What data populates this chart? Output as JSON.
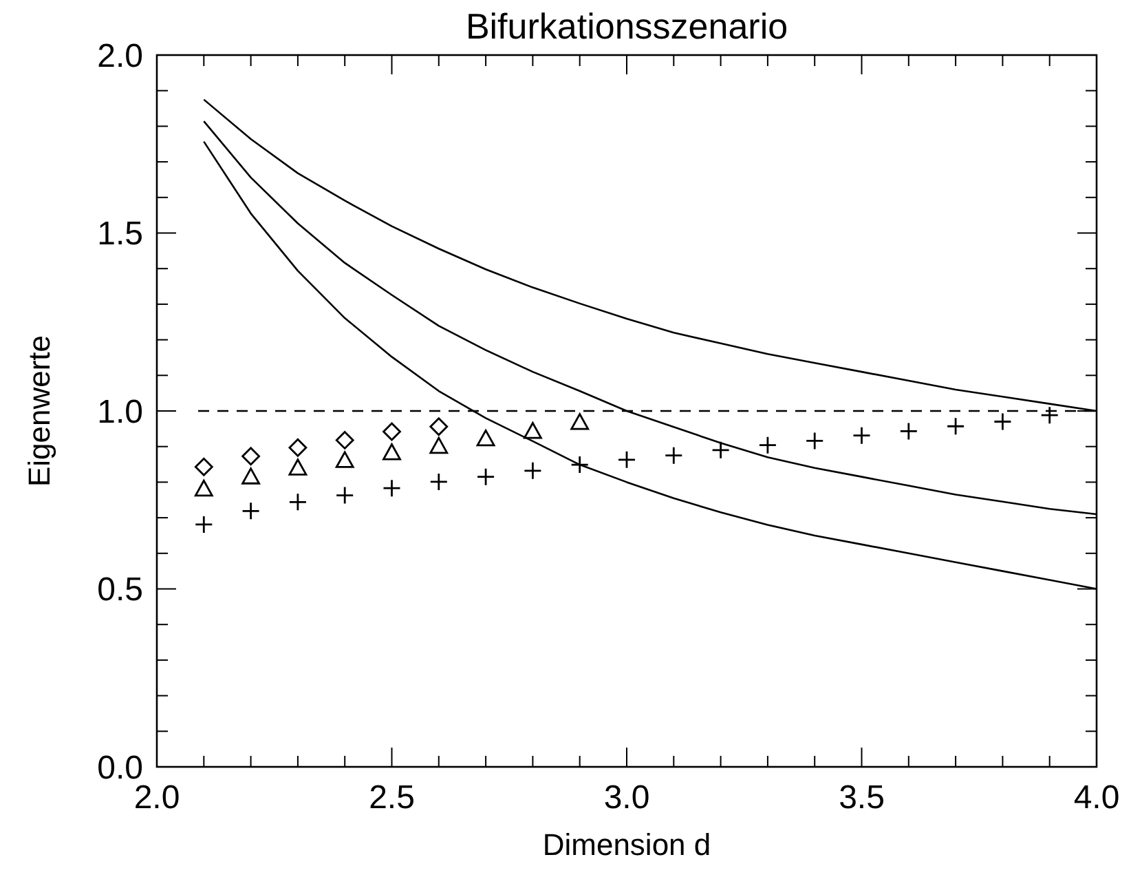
{
  "chart_data": {
    "type": "line",
    "title": "Bifurkationsszenario",
    "xlabel": "Dimension d",
    "ylabel": "Eigenwerte",
    "xlim": [
      2.0,
      4.0
    ],
    "ylim": [
      0.0,
      2.0
    ],
    "xticks": [
      {
        "value": 2.0,
        "label": "2.0"
      },
      {
        "value": 2.1,
        "label": null
      },
      {
        "value": 2.2,
        "label": null
      },
      {
        "value": 2.3,
        "label": null
      },
      {
        "value": 2.4,
        "label": null
      },
      {
        "value": 2.5,
        "label": "2.5"
      },
      {
        "value": 2.6,
        "label": null
      },
      {
        "value": 2.7,
        "label": null
      },
      {
        "value": 2.8,
        "label": null
      },
      {
        "value": 2.9,
        "label": null
      },
      {
        "value": 3.0,
        "label": "3.0"
      },
      {
        "value": 3.1,
        "label": null
      },
      {
        "value": 3.2,
        "label": null
      },
      {
        "value": 3.3,
        "label": null
      },
      {
        "value": 3.4,
        "label": null
      },
      {
        "value": 3.5,
        "label": "3.5"
      },
      {
        "value": 3.6,
        "label": null
      },
      {
        "value": 3.7,
        "label": null
      },
      {
        "value": 3.8,
        "label": null
      },
      {
        "value": 3.9,
        "label": null
      },
      {
        "value": 4.0,
        "label": "4.0"
      }
    ],
    "yticks": [
      {
        "value": 0.0,
        "label": "0.0"
      },
      {
        "value": 0.1,
        "label": null
      },
      {
        "value": 0.2,
        "label": null
      },
      {
        "value": 0.3,
        "label": null
      },
      {
        "value": 0.4,
        "label": null
      },
      {
        "value": 0.5,
        "label": "0.5"
      },
      {
        "value": 0.6,
        "label": null
      },
      {
        "value": 0.7,
        "label": null
      },
      {
        "value": 0.8,
        "label": null
      },
      {
        "value": 0.9,
        "label": null
      },
      {
        "value": 1.0,
        "label": "1.0"
      },
      {
        "value": 1.1,
        "label": null
      },
      {
        "value": 1.2,
        "label": null
      },
      {
        "value": 1.3,
        "label": null
      },
      {
        "value": 1.4,
        "label": null
      },
      {
        "value": 1.5,
        "label": "1.5"
      },
      {
        "value": 1.6,
        "label": null
      },
      {
        "value": 1.7,
        "label": null
      },
      {
        "value": 1.8,
        "label": null
      },
      {
        "value": 1.9,
        "label": null
      },
      {
        "value": 2.0,
        "label": "2.0"
      }
    ],
    "grid": false,
    "ref_lines": [
      {
        "axis": "y",
        "value": 1.0,
        "label": null,
        "color": "#000000",
        "line_style": "dashed"
      }
    ],
    "series": [
      {
        "color": "#000000",
        "marker": "none",
        "line_style": "solid",
        "x": [
          2.1,
          2.2,
          2.3,
          2.4,
          2.5,
          2.6,
          2.7,
          2.8,
          2.9,
          3.0,
          3.1,
          3.2,
          3.3,
          3.4,
          3.5,
          3.6,
          3.7,
          3.8,
          3.9,
          4.0
        ],
        "values": [
          1.875,
          1.764,
          1.668,
          1.591,
          1.519,
          1.456,
          1.398,
          1.347,
          1.302,
          1.259,
          1.22,
          1.19,
          1.16,
          1.135,
          1.11,
          1.085,
          1.06,
          1.04,
          1.02,
          1.0
        ]
      },
      {
        "color": "#000000",
        "marker": "none",
        "line_style": "solid",
        "x": [
          2.1,
          2.2,
          2.3,
          2.4,
          2.5,
          2.6,
          2.7,
          2.8,
          2.9,
          3.0,
          3.1,
          3.2,
          3.3,
          3.4,
          3.5,
          3.6,
          3.7,
          3.8,
          3.9,
          4.0
        ],
        "values": [
          1.814,
          1.656,
          1.527,
          1.416,
          1.326,
          1.239,
          1.171,
          1.11,
          1.056,
          1.0,
          0.955,
          0.91,
          0.87,
          0.84,
          0.815,
          0.79,
          0.765,
          0.745,
          0.725,
          0.71
        ]
      },
      {
        "color": "#000000",
        "marker": "none",
        "line_style": "solid",
        "x": [
          2.1,
          2.2,
          2.3,
          2.4,
          2.5,
          2.6,
          2.7,
          2.8,
          2.9,
          3.0,
          3.1,
          3.2,
          3.3,
          3.4,
          3.5,
          3.6,
          3.7,
          3.8,
          3.9,
          4.0
        ],
        "values": [
          1.757,
          1.555,
          1.394,
          1.261,
          1.152,
          1.056,
          0.98,
          0.915,
          0.849,
          0.8,
          0.755,
          0.715,
          0.68,
          0.65,
          0.625,
          0.6,
          0.575,
          0.55,
          0.525,
          0.5
        ]
      },
      {
        "type": "scatter",
        "color": "#000000",
        "marker": "diamond",
        "x": [
          2.1,
          2.2,
          2.3,
          2.4,
          2.5,
          2.6
        ],
        "values": [
          0.843,
          0.873,
          0.897,
          0.918,
          0.942,
          0.956
        ]
      },
      {
        "type": "scatter",
        "color": "#000000",
        "marker": "triangle",
        "x": [
          2.1,
          2.2,
          2.3,
          2.4,
          2.5,
          2.6,
          2.7,
          2.8,
          2.9
        ],
        "values": [
          0.781,
          0.815,
          0.84,
          0.861,
          0.883,
          0.901,
          0.922,
          0.943,
          0.968
        ]
      },
      {
        "type": "scatter",
        "color": "#000000",
        "marker": "cross",
        "x": [
          2.1,
          2.2,
          2.3,
          2.4,
          2.5,
          2.6,
          2.7,
          2.8,
          2.9,
          3.0,
          3.1,
          3.2,
          3.3,
          3.4,
          3.5,
          3.6,
          3.7,
          3.8,
          3.9
        ],
        "values": [
          0.681,
          0.719,
          0.744,
          0.763,
          0.783,
          0.801,
          0.815,
          0.832,
          0.849,
          0.863,
          0.875,
          0.89,
          0.904,
          0.916,
          0.931,
          0.943,
          0.957,
          0.97,
          0.988
        ]
      }
    ]
  }
}
